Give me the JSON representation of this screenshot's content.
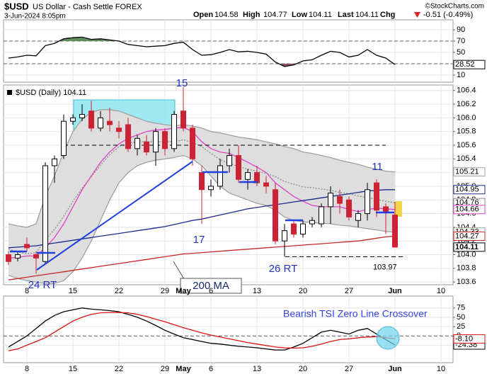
{
  "header": {
    "symbol": "$USD",
    "name": "US Dollar - Cash Settle FOREX",
    "date": "3-Jun-2024 8:05pm",
    "source": "©StockCharts.com",
    "quote": [
      {
        "label": "Open",
        "value": "104.58"
      },
      {
        "label": "High",
        "value": "104.77"
      },
      {
        "label": "Low",
        "value": "104.11"
      },
      {
        "label": "Last",
        "value": "104.11"
      },
      {
        "label": "Chg",
        "value": "-0.51 (-0.49%)"
      }
    ]
  },
  "chart_data": [
    {
      "type": "line",
      "ylim": [
        -2.5,
        107.5
      ],
      "yticks": [
        90,
        70,
        50,
        30,
        10
      ],
      "upper_threshold": 70,
      "lower_threshold": 30,
      "upper_fill": "#5f8f5e",
      "lower_fill": "#8c5566",
      "series": [
        {
          "color": "#000000",
          "values": [
            40,
            42,
            45,
            44,
            62,
            66,
            74,
            76,
            77,
            73,
            74,
            72,
            70,
            64,
            62,
            60,
            61,
            62,
            66,
            68,
            55,
            45,
            46,
            50,
            55,
            51,
            52,
            50,
            47,
            33,
            25,
            28,
            35,
            37,
            45,
            52,
            50,
            42,
            45,
            55,
            45,
            40,
            28.52
          ]
        }
      ]
    },
    {
      "type": "candlestick",
      "legend": "$USD (Daily) 104.11",
      "ylim": [
        103.56,
        106.48
      ],
      "yticks": [
        106.4,
        106.2,
        {
          "value": 106,
          "label": "106.0"
        },
        105.8,
        105.6,
        105.4,
        105.2,
        {
          "value": 105,
          "label": "105.0"
        },
        104.8,
        104.6,
        104.4,
        104.2,
        {
          "value": 104,
          "label": "104.0"
        },
        103.8,
        103.6
      ],
      "xticks": [
        {
          "value": 2,
          "label": "8"
        },
        {
          "value": 7,
          "label": "15"
        },
        {
          "value": 12,
          "label": "22"
        },
        {
          "value": 17,
          "label": "29"
        },
        {
          "value": 19,
          "label": "May"
        },
        {
          "value": 22,
          "label": "6"
        },
        {
          "value": 27,
          "label": "13"
        },
        {
          "value": 32,
          "label": "20"
        },
        {
          "value": 37,
          "label": "27"
        },
        {
          "value": 42,
          "label": "Jun"
        },
        {
          "value": 47,
          "label": "10"
        }
      ],
      "up_color": "#ffffff",
      "down_color": "#cc2233",
      "open": [
        104.0,
        103.95,
        104.15,
        104.0,
        103.9,
        105.3,
        105.45,
        105.95,
        106.0,
        106.1,
        105.85,
        105.95,
        105.85,
        105.9,
        105.55,
        105.65,
        105.5,
        105.8,
        105.55,
        106.1,
        105.85,
        105.2,
        104.95,
        105.0,
        105.3,
        105.45,
        105.1,
        105.2,
        105.05,
        104.95,
        104.2,
        104.45,
        104.3,
        104.45,
        104.45,
        104.7,
        104.85,
        104.8,
        104.5,
        104.6,
        105.05,
        104.7,
        104.58
      ],
      "high": [
        104.05,
        104.05,
        104.25,
        104.05,
        105.35,
        105.45,
        106.05,
        106.05,
        106.2,
        106.25,
        106.1,
        106.15,
        105.95,
        106.0,
        105.75,
        105.75,
        105.85,
        105.85,
        106.1,
        106.45,
        105.9,
        105.3,
        105.1,
        105.4,
        105.55,
        105.6,
        105.25,
        105.3,
        105.15,
        105.05,
        104.45,
        104.5,
        104.5,
        104.55,
        104.75,
        105.0,
        104.95,
        104.85,
        104.65,
        105.05,
        105.1,
        104.75,
        104.77
      ],
      "low": [
        103.85,
        103.9,
        104.05,
        103.72,
        103.85,
        105.05,
        105.4,
        105.9,
        105.95,
        105.8,
        105.8,
        105.8,
        105.7,
        105.5,
        105.45,
        105.45,
        105.3,
        105.45,
        105.5,
        105.8,
        105.3,
        104.45,
        104.85,
        104.95,
        105.2,
        105.05,
        104.95,
        105.0,
        104.9,
        104.15,
        103.97,
        104.25,
        104.25,
        104.4,
        104.4,
        104.45,
        104.6,
        104.5,
        104.4,
        104.5,
        104.55,
        104.3,
        104.11
      ],
      "close": [
        103.9,
        104.0,
        104.1,
        103.95,
        105.3,
        105.4,
        105.95,
        106.0,
        106.05,
        105.85,
        106.0,
        105.9,
        105.8,
        105.55,
        105.7,
        105.5,
        105.8,
        105.55,
        106.05,
        105.85,
        105.4,
        104.95,
        105.0,
        105.3,
        105.45,
        105.1,
        105.2,
        105.05,
        105.0,
        104.2,
        104.35,
        104.3,
        104.45,
        104.5,
        104.7,
        104.9,
        104.75,
        104.55,
        104.6,
        104.95,
        104.65,
        104.62,
        104.11
      ],
      "fill_between": [
        0,
        1
      ],
      "band_fill": "#dedede",
      "series": [
        {
          "color": "#a0a0a0",
          "values": [
            104.45,
            104.42,
            104.4,
            104.45,
            104.85,
            105.15,
            105.5,
            105.8,
            105.98,
            106.08,
            106.12,
            106.12,
            106.1,
            106.05,
            106.0,
            105.95,
            105.92,
            105.9,
            105.88,
            105.9,
            105.88,
            105.85,
            105.8,
            105.78,
            105.75,
            105.72,
            105.7,
            105.68,
            105.65,
            105.62,
            105.58,
            105.55,
            105.5,
            105.48,
            105.45,
            105.42,
            105.38,
            105.35,
            105.32,
            105.28,
            105.25,
            105.22,
            105.21
          ]
        },
        {
          "color": "#a0a0a0",
          "values": [
            103.7,
            103.65,
            103.62,
            103.6,
            103.58,
            103.58,
            103.62,
            103.75,
            103.95,
            104.2,
            104.5,
            104.8,
            105.05,
            105.2,
            105.3,
            105.35,
            105.38,
            105.4,
            105.42,
            105.45,
            105.4,
            105.3,
            105.15,
            105.0,
            104.9,
            104.85,
            104.8,
            104.75,
            104.72,
            104.65,
            104.55,
            104.5,
            104.48,
            104.47,
            104.46,
            104.45,
            104.43,
            104.42,
            104.4,
            104.38,
            104.36,
            104.34,
            104.33
          ]
        },
        {
          "color": "#8a8a8a",
          "dotted": true,
          "values": [
            104.08,
            104.04,
            104.01,
            104.03,
            104.22,
            104.37,
            104.56,
            104.78,
            104.97,
            105.14,
            105.31,
            105.46,
            105.58,
            105.63,
            105.65,
            105.65,
            105.65,
            105.65,
            105.65,
            105.68,
            105.64,
            105.58,
            105.48,
            105.39,
            105.33,
            105.29,
            105.25,
            105.22,
            105.19,
            105.14,
            105.07,
            105.03,
            104.99,
            104.98,
            104.96,
            104.94,
            104.91,
            104.89,
            104.86,
            104.83,
            104.81,
            104.78,
            104.76
          ]
        },
        {
          "color": "#e040c8",
          "values": [
            103.95,
            103.96,
            103.98,
            103.98,
            104.1,
            104.25,
            104.45,
            104.7,
            104.95,
            105.15,
            105.35,
            105.5,
            105.62,
            105.7,
            105.75,
            105.8,
            105.82,
            105.83,
            105.85,
            105.86,
            105.8,
            105.65,
            105.55,
            105.5,
            105.48,
            105.42,
            105.35,
            105.28,
            105.2,
            105.05,
            104.95,
            104.85,
            104.78,
            104.72,
            104.7,
            104.7,
            104.7,
            104.66,
            104.63,
            104.66,
            104.68,
            104.67,
            104.66
          ]
        },
        {
          "color": "#1a2a8a",
          "values": [
            104.1,
            104.11,
            104.12,
            104.13,
            104.15,
            104.17,
            104.19,
            104.21,
            104.23,
            104.25,
            104.27,
            104.29,
            104.31,
            104.33,
            104.35,
            104.37,
            104.39,
            104.41,
            104.44,
            104.47,
            104.5,
            104.52,
            104.55,
            104.58,
            104.61,
            104.64,
            104.67,
            104.69,
            104.71,
            104.73,
            104.75,
            104.77,
            104.79,
            104.81,
            104.83,
            104.85,
            104.87,
            104.89,
            104.91,
            104.93,
            104.94,
            104.95,
            104.95
          ]
        },
        {
          "color": "#c62828",
          "values": [
            103.63,
            103.65,
            103.67,
            103.69,
            103.71,
            103.73,
            103.75,
            103.77,
            103.79,
            103.81,
            103.83,
            103.85,
            103.87,
            103.89,
            103.91,
            103.93,
            103.95,
            103.97,
            103.99,
            104.01,
            104.02,
            104.03,
            104.04,
            104.05,
            104.06,
            104.07,
            104.08,
            104.09,
            104.1,
            104.11,
            104.12,
            104.13,
            104.14,
            104.15,
            104.16,
            104.17,
            104.18,
            104.19,
            104.2,
            104.22,
            104.24,
            104.26,
            104.27
          ]
        }
      ],
      "dashed_levels": [
        105.6,
        103.97
      ],
      "annotations": [
        "15",
        "17",
        "24 RT",
        "26 RT",
        "11",
        "200 MA"
      ]
    },
    {
      "type": "line",
      "annotation": "Bearish TSI Zero Line Crossover",
      "ylim": [
        -72,
        107
      ],
      "yticks": [
        75,
        50,
        25,
        0,
        -25
      ],
      "zero_line": true,
      "xticks": [
        {
          "value": 2,
          "label": "8"
        },
        {
          "value": 7,
          "label": "15"
        },
        {
          "value": 12,
          "label": "22"
        },
        {
          "value": 17,
          "label": "29"
        },
        {
          "value": 19,
          "label": "May"
        },
        {
          "value": 22,
          "label": "6"
        },
        {
          "value": 27,
          "label": "13"
        },
        {
          "value": 32,
          "label": "20"
        },
        {
          "value": 37,
          "label": "27"
        },
        {
          "value": 42,
          "label": "Jun"
        },
        {
          "value": 47,
          "label": "10"
        }
      ],
      "series": [
        {
          "color": "#000000",
          "values": [
            -30,
            -15,
            0,
            20,
            40,
            55,
            65,
            70,
            75,
            72,
            70,
            68,
            65,
            58,
            50,
            40,
            28,
            15,
            5,
            -5,
            -10,
            -15,
            -20,
            -22,
            -25,
            -28,
            -30,
            -32,
            -35,
            -38,
            -38,
            -30,
            -20,
            -5,
            10,
            15,
            10,
            5,
            15,
            20,
            5,
            -10,
            -24.38
          ]
        },
        {
          "color": "#dd1111",
          "values": [
            -40,
            -35,
            -25,
            -15,
            -5,
            10,
            25,
            40,
            50,
            58,
            62,
            63,
            63,
            62,
            58,
            52,
            45,
            38,
            30,
            22,
            15,
            8,
            2,
            -3,
            -8,
            -13,
            -18,
            -22,
            -26,
            -30,
            -32,
            -33,
            -32,
            -28,
            -22,
            -15,
            -10,
            -8,
            -5,
            -3,
            -2,
            -5,
            -8.1
          ],
          "value_labels": [
            null,
            null,
            null,
            null,
            null,
            null,
            null,
            null,
            null,
            null,
            null,
            null,
            null,
            null,
            null,
            null,
            null,
            null,
            null,
            null,
            null,
            null,
            null,
            null,
            null,
            null,
            null,
            null,
            null,
            null,
            null,
            null,
            null,
            null,
            null,
            null,
            null,
            null,
            null,
            null,
            null,
            null,
            "-8.10"
          ]
        }
      ]
    }
  ]
}
